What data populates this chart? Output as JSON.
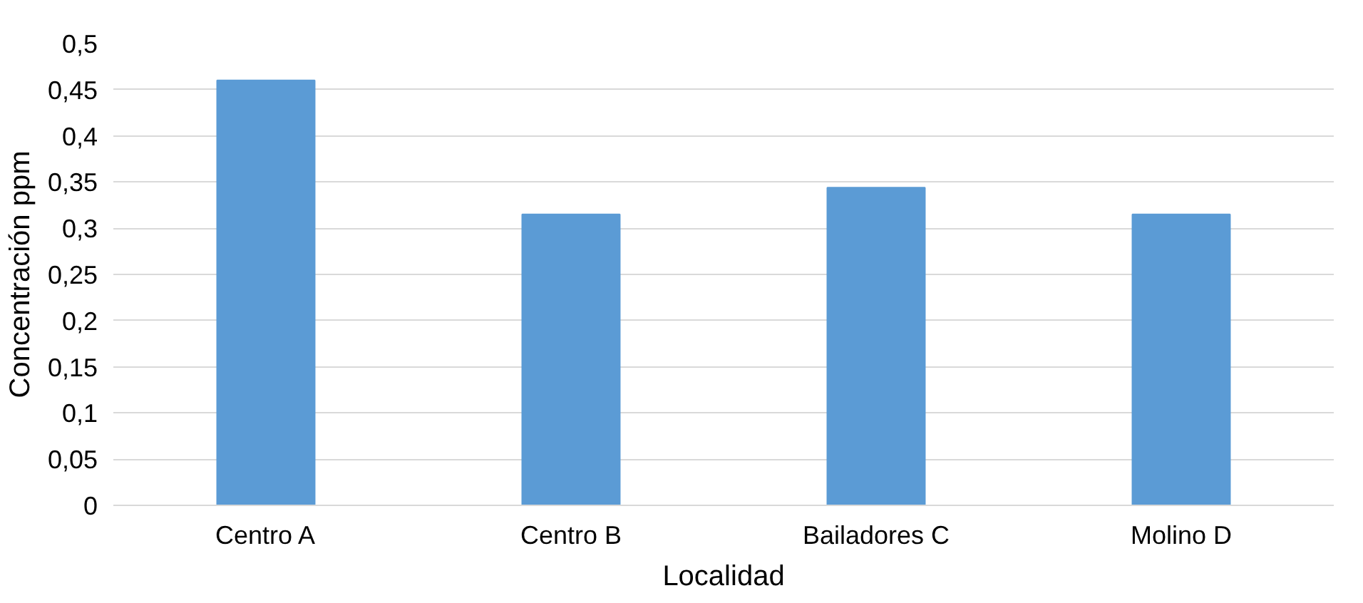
{
  "chart_data": {
    "type": "bar",
    "xlabel": "Localidad",
    "ylabel": "Concentración ppm",
    "categories": [
      "Centro A",
      "Centro B",
      "Bailadores C",
      "Molino D"
    ],
    "values": [
      0.46,
      0.315,
      0.344,
      0.315
    ],
    "color": "#5b9bd5",
    "ylim": [
      0,
      0.5
    ],
    "yticks": [
      0,
      {
        "value": 0.05,
        "label": "0,05"
      },
      {
        "value": 0.1,
        "label": "0,1"
      },
      {
        "value": 0.15,
        "label": "0,15"
      },
      {
        "value": 0.2,
        "label": "0,2"
      },
      {
        "value": 0.25,
        "label": "0,25"
      },
      {
        "value": 0.3,
        "label": "0,3"
      },
      {
        "value": 0.35,
        "label": "0,35"
      },
      {
        "value": 0.4,
        "label": "0,4"
      },
      {
        "value": 0.45,
        "label": "0,45"
      },
      {
        "value": 0.5,
        "label": "0,5"
      }
    ],
    "grid": "y"
  }
}
